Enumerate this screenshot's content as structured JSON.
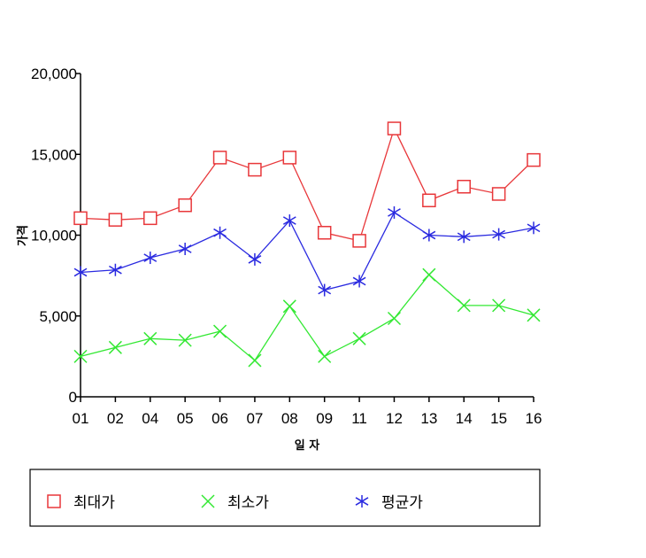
{
  "chart_data": {
    "type": "line",
    "title": "",
    "xlabel": "일 자",
    "ylabel": "가격",
    "categories": [
      "01",
      "02",
      "04",
      "05",
      "06",
      "07",
      "08",
      "09",
      "11",
      "12",
      "13",
      "14",
      "15",
      "16"
    ],
    "yticks": [
      "0",
      "5,000",
      "10,000",
      "15,000",
      "20,000"
    ],
    "ytick_values": [
      0,
      5000,
      10000,
      15000,
      20000
    ],
    "ylim": [
      0,
      20000
    ],
    "grid": false,
    "legend_position": "bottom",
    "series": [
      {
        "name": "최대가",
        "color": "#e8373a",
        "marker": "square",
        "values": [
          11050,
          10950,
          11050,
          11850,
          14800,
          14050,
          14800,
          10150,
          9650,
          16600,
          12150,
          13000,
          12550,
          14650
        ]
      },
      {
        "name": "최소가",
        "color": "#33e833",
        "marker": "x",
        "values": [
          2500,
          3050,
          3600,
          3500,
          4050,
          2250,
          5600,
          2500,
          3600,
          4850,
          7550,
          5650,
          5650,
          5050
        ]
      },
      {
        "name": "평균가",
        "color": "#2a2ae0",
        "marker": "asterisk",
        "values": [
          7700,
          7850,
          8600,
          9150,
          10150,
          8500,
          10900,
          6600,
          7150,
          11400,
          10000,
          9900,
          10050,
          10450
        ]
      }
    ]
  }
}
